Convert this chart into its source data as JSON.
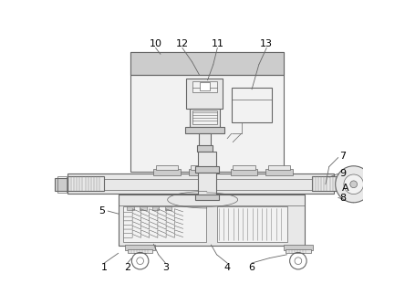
{
  "bg_color": "#ffffff",
  "lc": "#666666",
  "lc2": "#888888",
  "fl": "#cccccc",
  "fll": "#e8e8e8",
  "flll": "#f2f2f2",
  "fig_width": 4.44,
  "fig_height": 3.34
}
